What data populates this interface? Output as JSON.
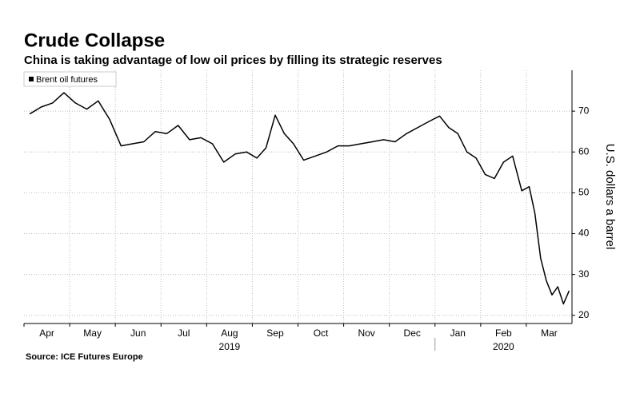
{
  "chart_data": {
    "type": "line",
    "title": "Crude Collapse",
    "subtitle": "China is taking advantage of low oil prices by filling its strategic reserves",
    "y_label": "U.S. dollars a barrel",
    "source": "Source: ICE Futures Europe",
    "x": [
      "2019-04",
      "2019-04",
      "2019-04",
      "2019-04",
      "2019-05",
      "2019-05",
      "2019-05",
      "2019-05",
      "2019-06",
      "2019-06",
      "2019-06",
      "2019-06",
      "2019-07",
      "2019-07",
      "2019-07",
      "2019-07",
      "2019-08",
      "2019-08",
      "2019-08",
      "2019-08",
      "2019-09",
      "2019-09",
      "2019-09",
      "2019-09",
      "2019-09",
      "2019-10",
      "2019-10",
      "2019-10",
      "2019-10",
      "2019-11",
      "2019-11",
      "2019-11",
      "2019-11",
      "2019-12",
      "2019-12",
      "2019-12",
      "2019-12",
      "2020-01",
      "2020-01",
      "2020-01",
      "2020-01",
      "2020-01",
      "2020-02",
      "2020-02",
      "2020-02",
      "2020-02",
      "2020-02",
      "2020-03",
      "2020-03",
      "2020-03",
      "2020-03",
      "2020-03",
      "2020-03",
      "2020-03",
      "2020-03"
    ],
    "series": [
      {
        "name": "Brent oil futures",
        "color": "#000000",
        "values": [
          69.3,
          71.0,
          72.0,
          74.5,
          72.0,
          70.5,
          72.5,
          68.0,
          61.5,
          62.0,
          62.5,
          65.0,
          64.5,
          66.5,
          63.0,
          63.5,
          62.0,
          57.5,
          59.5,
          60.0,
          58.5,
          61.0,
          69.0,
          64.5,
          62.0,
          58.0,
          59.0,
          60.0,
          61.5,
          61.5,
          62.0,
          62.5,
          63.0,
          62.5,
          64.5,
          66.0,
          67.5,
          68.8,
          66.0,
          64.5,
          60.0,
          58.5,
          54.5,
          53.5,
          57.5,
          59.0,
          50.5,
          51.5,
          45.0,
          34.0,
          28.5,
          25.0,
          27.0,
          22.8,
          26.0
        ]
      }
    ],
    "xticks": [
      {
        "value": "2019-04",
        "label": "Apr"
      },
      {
        "value": "2019-05",
        "label": "May"
      },
      {
        "value": "2019-06",
        "label": "Jun"
      },
      {
        "value": "2019-07",
        "label": "Jul"
      },
      {
        "value": "2019-08",
        "label": "Aug"
      },
      {
        "value": "2019-09",
        "label": "Sep"
      },
      {
        "value": "2019-10",
        "label": "Oct"
      },
      {
        "value": "2019-11",
        "label": "Nov"
      },
      {
        "value": "2019-12",
        "label": "Dec"
      },
      {
        "value": "2020-01",
        "label": "Jan"
      },
      {
        "value": "2020-02",
        "label": "Feb"
      },
      {
        "value": "2020-03",
        "label": "Mar"
      }
    ],
    "x_groups": [
      {
        "label": "2019",
        "from": "2019-04",
        "to": "2019-12"
      },
      {
        "label": "2020",
        "from": "2020-01",
        "to": "2020-03"
      }
    ],
    "ylim": [
      18,
      80
    ],
    "yticks": [
      20,
      30,
      40,
      50,
      60,
      70
    ],
    "grid": true,
    "legend": "upper left"
  }
}
